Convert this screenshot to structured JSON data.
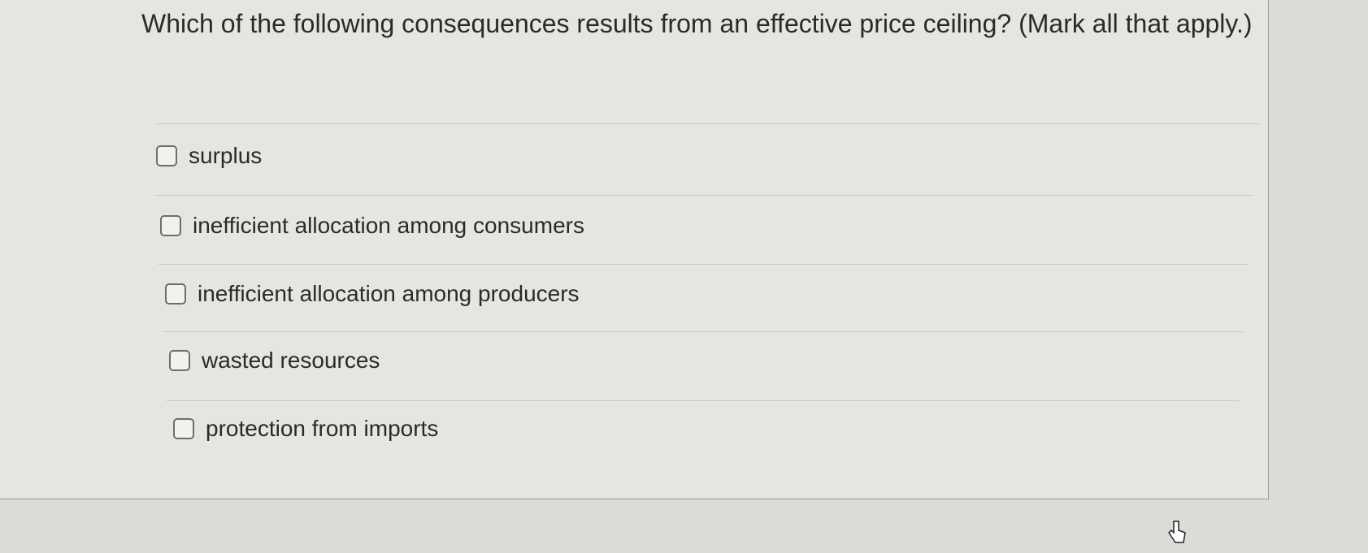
{
  "question": {
    "text": "Which of the following consequences results from an effective price ceiling? (Mark all that apply.)",
    "options": [
      "surplus",
      "inefficient allocation among consumers",
      "inefficient allocation among producers",
      "wasted resources",
      "protection from imports"
    ]
  }
}
